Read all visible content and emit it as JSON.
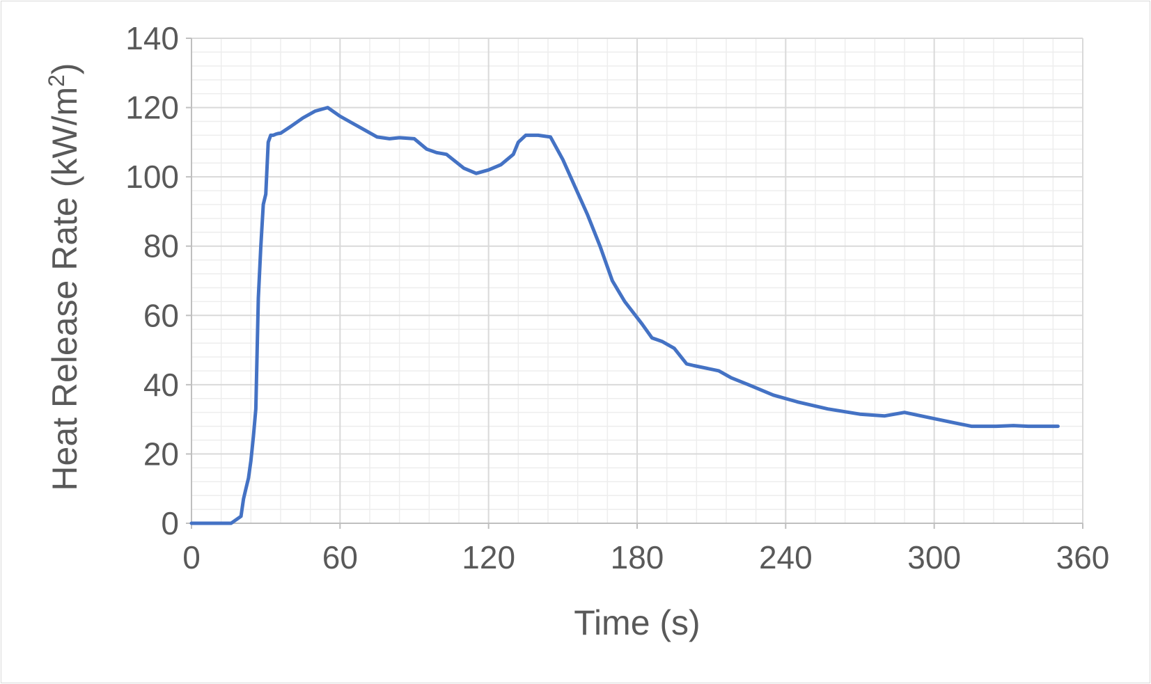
{
  "chart_data": {
    "type": "line",
    "title": "",
    "xlabel": "Time (s)",
    "ylabel_main": "Heat Release Rate (kW/m",
    "ylabel_sup": "2",
    "ylabel_close": ")",
    "xlim": [
      0,
      360
    ],
    "ylim": [
      0,
      140
    ],
    "x_ticks": [
      0,
      60,
      120,
      180,
      240,
      300,
      360
    ],
    "y_ticks": [
      0,
      20,
      40,
      60,
      80,
      100,
      120,
      140
    ],
    "x_tick_labels": [
      "0",
      "60",
      "120",
      "180",
      "240",
      "300",
      "360"
    ],
    "y_tick_labels": [
      "0",
      "20",
      "40",
      "60",
      "80",
      "100",
      "120",
      "140"
    ],
    "x_minor_step": 12,
    "y_minor_step": 4,
    "grid": true,
    "legend": "none",
    "series": [
      {
        "color": "#4472c4",
        "x": [
          0,
          5,
          10,
          16,
          18,
          20,
          21,
          22,
          23,
          24,
          25,
          26,
          27,
          28,
          29,
          30,
          31,
          32,
          33,
          34,
          35,
          36,
          40,
          45,
          50,
          55,
          57,
          60,
          65,
          70,
          75,
          80,
          84,
          90,
          95,
          99,
          103,
          110,
          115,
          120,
          125,
          130,
          132,
          135,
          140,
          145,
          150,
          155,
          160,
          165,
          170,
          175,
          182,
          186,
          190,
          195,
          200,
          203,
          213,
          218,
          225,
          235,
          245,
          257,
          270,
          280,
          288,
          298,
          308,
          315,
          325,
          332,
          338,
          350
        ],
        "y": [
          0,
          0,
          0,
          0,
          1,
          2,
          7,
          10,
          13,
          18,
          25,
          33,
          65,
          80,
          92,
          95,
          110,
          112,
          112,
          112.3,
          112.5,
          112.6,
          114.5,
          117,
          119,
          120,
          119,
          117.5,
          115.5,
          113.5,
          111.5,
          111,
          111.3,
          111,
          108,
          107,
          106.5,
          102.5,
          101,
          102,
          103.5,
          106.5,
          110,
          112,
          112,
          111.5,
          105,
          97,
          89,
          80,
          70,
          64,
          57.5,
          53.5,
          52.5,
          50.5,
          46,
          45.5,
          44,
          42,
          40,
          37,
          35,
          33,
          31.5,
          31,
          32,
          30.5,
          29,
          28,
          28,
          28.2,
          28,
          28
        ]
      }
    ]
  }
}
